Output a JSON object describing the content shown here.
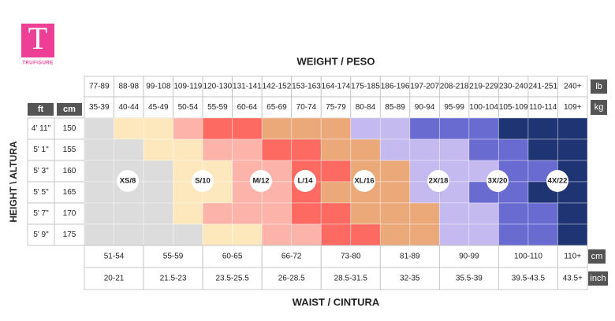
{
  "logo": {
    "letter": "T",
    "brand": "TRUFIGURE"
  },
  "weight_title": "WEIGHT / PESO",
  "waist_title": "WAIST / CINTURA",
  "height_title": "HEIGHT \\ ALTURA",
  "weight": {
    "lb_unit": "lb",
    "kg_unit": "kg",
    "lb": [
      "77-89",
      "88-98",
      "99-108",
      "109-119",
      "120-130",
      "131-141",
      "142-152",
      "153-163",
      "164-174",
      "175-185",
      "186-196",
      "197-207",
      "208-218",
      "219-229",
      "230-240",
      "241-251",
      "240+"
    ],
    "kg": [
      "35-39",
      "40-44",
      "45-49",
      "50-54",
      "55-59",
      "60-64",
      "65-69",
      "70-74",
      "75-79",
      "80-84",
      "85-89",
      "90-94",
      "95-99",
      "100-104",
      "105-109",
      "110-114",
      "109+"
    ]
  },
  "height": {
    "ft_header": "ft",
    "cm_header": "cm",
    "rows": [
      [
        "4' 11\"",
        "150"
      ],
      [
        "5' 1\"",
        "155"
      ],
      [
        "5' 3\"",
        "160"
      ],
      [
        "5' 5\"",
        "165"
      ],
      [
        "5' 7\"",
        "170"
      ],
      [
        "5' 9\"",
        "175"
      ]
    ]
  },
  "waist": {
    "cm_unit": "cm",
    "inch_unit": "inch",
    "cm": [
      "51-54",
      "55-59",
      "60-65",
      "66-72",
      "73-80",
      "81-89",
      "90-99",
      "100-110",
      "110+"
    ],
    "inch": [
      "20-21",
      "21.5-23",
      "23.5-25.5",
      "26-28.5",
      "28.5-31.5",
      "32-35",
      "35.5-39",
      "39.5-43.5",
      "43.5+"
    ]
  },
  "sizes": [
    {
      "label": "XS/8",
      "color": "#dcdcdc"
    },
    {
      "label": "S/10",
      "color": "#fde8bd"
    },
    {
      "label": "M/12",
      "color": "#fbb3aa"
    },
    {
      "label": "L/14",
      "color": "#fd6a62"
    },
    {
      "label": "XL/16",
      "color": "#eba97a"
    },
    {
      "label": "2X/18",
      "color": "#c4baef"
    },
    {
      "label": "3X/20",
      "color": "#6a6bd1"
    },
    {
      "label": "4X/22",
      "color": "#1f3473"
    }
  ]
}
